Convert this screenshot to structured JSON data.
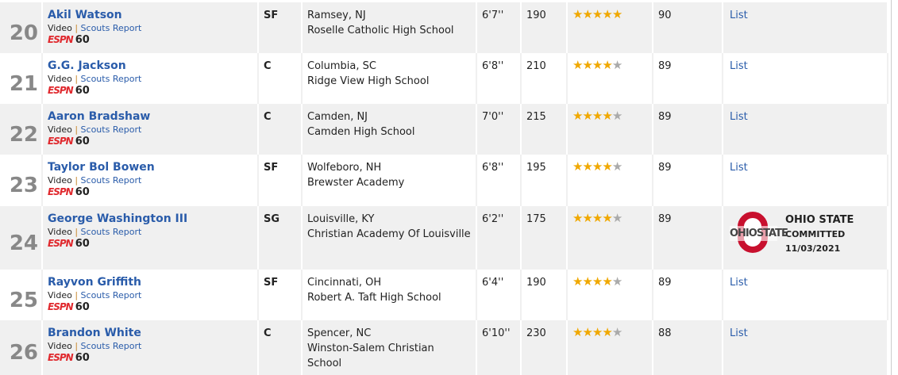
{
  "icons": {
    "star": "star-icon",
    "espn60": "espn-60-logo"
  },
  "colors": {
    "link": "#2a5caa",
    "star": "#f0a800",
    "row_alt": "#f0f0f0"
  },
  "rows": [
    {
      "rank": "20",
      "name": "Akil Watson",
      "video": "Video",
      "sep": "|",
      "scouts": "Scouts Report",
      "espn": "ESPN",
      "sixty": "60",
      "pos": "SF",
      "city": "Ramsey, NJ",
      "school": "Roselle Catholic High School",
      "ht": "6'7''",
      "wt": "190",
      "stars": 5,
      "grade": "90",
      "college": "List"
    },
    {
      "rank": "21",
      "name": "G.G. Jackson",
      "video": "Video",
      "sep": "|",
      "scouts": "Scouts Report",
      "espn": "ESPN",
      "sixty": "60",
      "pos": "C",
      "city": "Columbia, SC",
      "school": "Ridge View High School",
      "ht": "6'8''",
      "wt": "210",
      "stars": 4,
      "grade": "89",
      "college": "List"
    },
    {
      "rank": "22",
      "name": "Aaron Bradshaw",
      "video": "Video",
      "sep": "|",
      "scouts": "Scouts Report",
      "espn": "ESPN",
      "sixty": "60",
      "pos": "C",
      "city": "Camden, NJ",
      "school": "Camden High School",
      "ht": "7'0''",
      "wt": "215",
      "stars": 4,
      "grade": "89",
      "college": "List"
    },
    {
      "rank": "23",
      "name": "Taylor Bol Bowen",
      "video": "Video",
      "sep": "|",
      "scouts": "Scouts Report",
      "espn": "ESPN",
      "sixty": "60",
      "pos": "SF",
      "city": "Wolfeboro, NH",
      "school": "Brewster Academy",
      "ht": "6'8''",
      "wt": "195",
      "stars": 4,
      "grade": "89",
      "college": "List"
    },
    {
      "rank": "24",
      "name": "George Washington III",
      "video": "Video",
      "sep": "|",
      "scouts": "Scouts Report",
      "espn": "ESPN",
      "sixty": "60",
      "pos": "SG",
      "city": "Louisville, KY",
      "school": "Christian Academy Of Louisville",
      "ht": "6'2''",
      "wt": "175",
      "stars": 4,
      "grade": "89",
      "commit": {
        "logo": "OHIOSTATE",
        "team": "OHIO STATE",
        "status": "COMMITTED",
        "date": "11/03/2021"
      }
    },
    {
      "rank": "25",
      "name": "Rayvon Griffith",
      "video": "Video",
      "sep": "|",
      "scouts": "Scouts Report",
      "espn": "ESPN",
      "sixty": "60",
      "pos": "SF",
      "city": "Cincinnati, OH",
      "school": "Robert A. Taft High School",
      "ht": "6'4''",
      "wt": "190",
      "stars": 4,
      "grade": "89",
      "college": "List"
    },
    {
      "rank": "26",
      "name": "Brandon White",
      "video": "Video",
      "sep": "|",
      "scouts": "Scouts Report",
      "espn": "ESPN",
      "sixty": "60",
      "pos": "C",
      "city": "Spencer, NC",
      "school": "Winston-Salem Christian School",
      "ht": "6'10''",
      "wt": "230",
      "stars": 4,
      "grade": "88",
      "college": "List"
    }
  ]
}
